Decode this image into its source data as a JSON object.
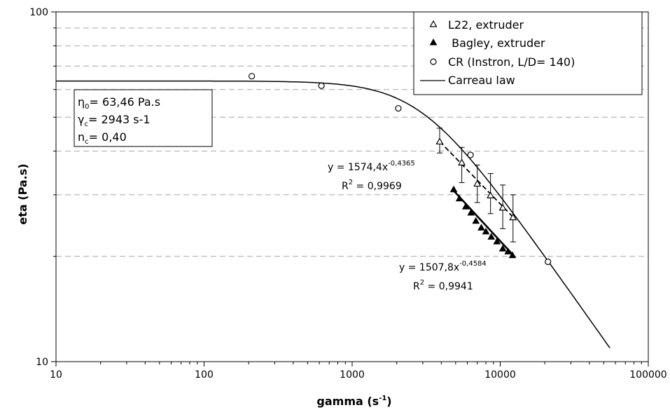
{
  "chart_data": {
    "type": "scatter",
    "xlabel": "gamma (s",
    "xlabel_sup": "-1",
    "xlabel_end": ")",
    "ylabel": "eta (Pa.s)",
    "xscale": "log",
    "yscale": "log",
    "xlim": [
      10,
      100000
    ],
    "ylim": [
      10,
      100
    ],
    "x_ticks": [
      "10",
      "100",
      "1000",
      "10000",
      "100000"
    ],
    "y_ticks": [
      "10",
      "100"
    ],
    "grid": "horizontal dashed at minor y ticks",
    "legend_position": "top-right",
    "legend": [
      {
        "label": "L22, extruder",
        "marker": "open-triangle"
      },
      {
        "label": " Bagley, extruder",
        "marker": "filled-triangle"
      },
      {
        "label": "CR (Instron, L/D= 140)",
        "marker": "open-circle"
      },
      {
        "label": "Carreau law",
        "marker": "line"
      }
    ],
    "series": [
      {
        "name": "L22, extruder",
        "x": [
          3900,
          5500,
          7000,
          8600,
          10400,
          12200
        ],
        "y": [
          42.5,
          37.0,
          32.2,
          29.8,
          27.5,
          25.8
        ],
        "err_low": [
          39.5,
          32.5,
          28.5,
          26.5,
          24.0,
          22.0
        ],
        "err_high": [
          46.5,
          41.0,
          36.5,
          34.5,
          32.0,
          30.0
        ]
      },
      {
        "name": "Bagley, extruder",
        "x": [
          4850,
          5300,
          5850,
          6350,
          6850,
          7450,
          8000,
          8700,
          9500,
          10400,
          11300,
          12100
        ],
        "y": [
          31.0,
          29.2,
          27.7,
          26.6,
          25.2,
          24.1,
          23.5,
          22.7,
          22.0,
          21.0,
          20.6,
          20.1
        ]
      },
      {
        "name": "CR (Instron, L/D= 140)",
        "x": [
          210,
          620,
          2050,
          6300,
          21000
        ],
        "y": [
          65.5,
          61.5,
          53.0,
          39.0,
          19.3
        ]
      },
      {
        "name": "Carreau law",
        "eta0": 63.46,
        "gamma_c": 2943,
        "n": 0.4,
        "x_range": [
          10,
          55000
        ]
      },
      {
        "name": "power-law fit L22",
        "a": 1574.4,
        "b": -0.4365,
        "x_range": [
          3900,
          12200
        ]
      },
      {
        "name": "power-law fit Bagley",
        "a": 1507.8,
        "b": -0.4584,
        "x_range": [
          4850,
          12100
        ]
      }
    ],
    "annotations": {
      "params": {
        "eta0_sym": "η",
        "eta0_sub": "0",
        "eta0_val": "= 63,46 Pa.s",
        "gc_sym": "γ",
        "gc_sub": "c",
        "gc_val": "= 2943 s-1",
        "n_sym": "n",
        "n_sub": "c",
        "n_val": "= 0,40"
      },
      "fit1": {
        "eq": "y = 1574,4x",
        "exp": "-0,4365",
        "r2_label": "R",
        "r2_sup": "2",
        "r2_val": " = 0,9969"
      },
      "fit2": {
        "eq": "y = 1507,8x",
        "exp": "-0,4584",
        "r2_label": "R",
        "r2_sup": "2",
        "r2_val": " = 0,9941"
      }
    }
  }
}
